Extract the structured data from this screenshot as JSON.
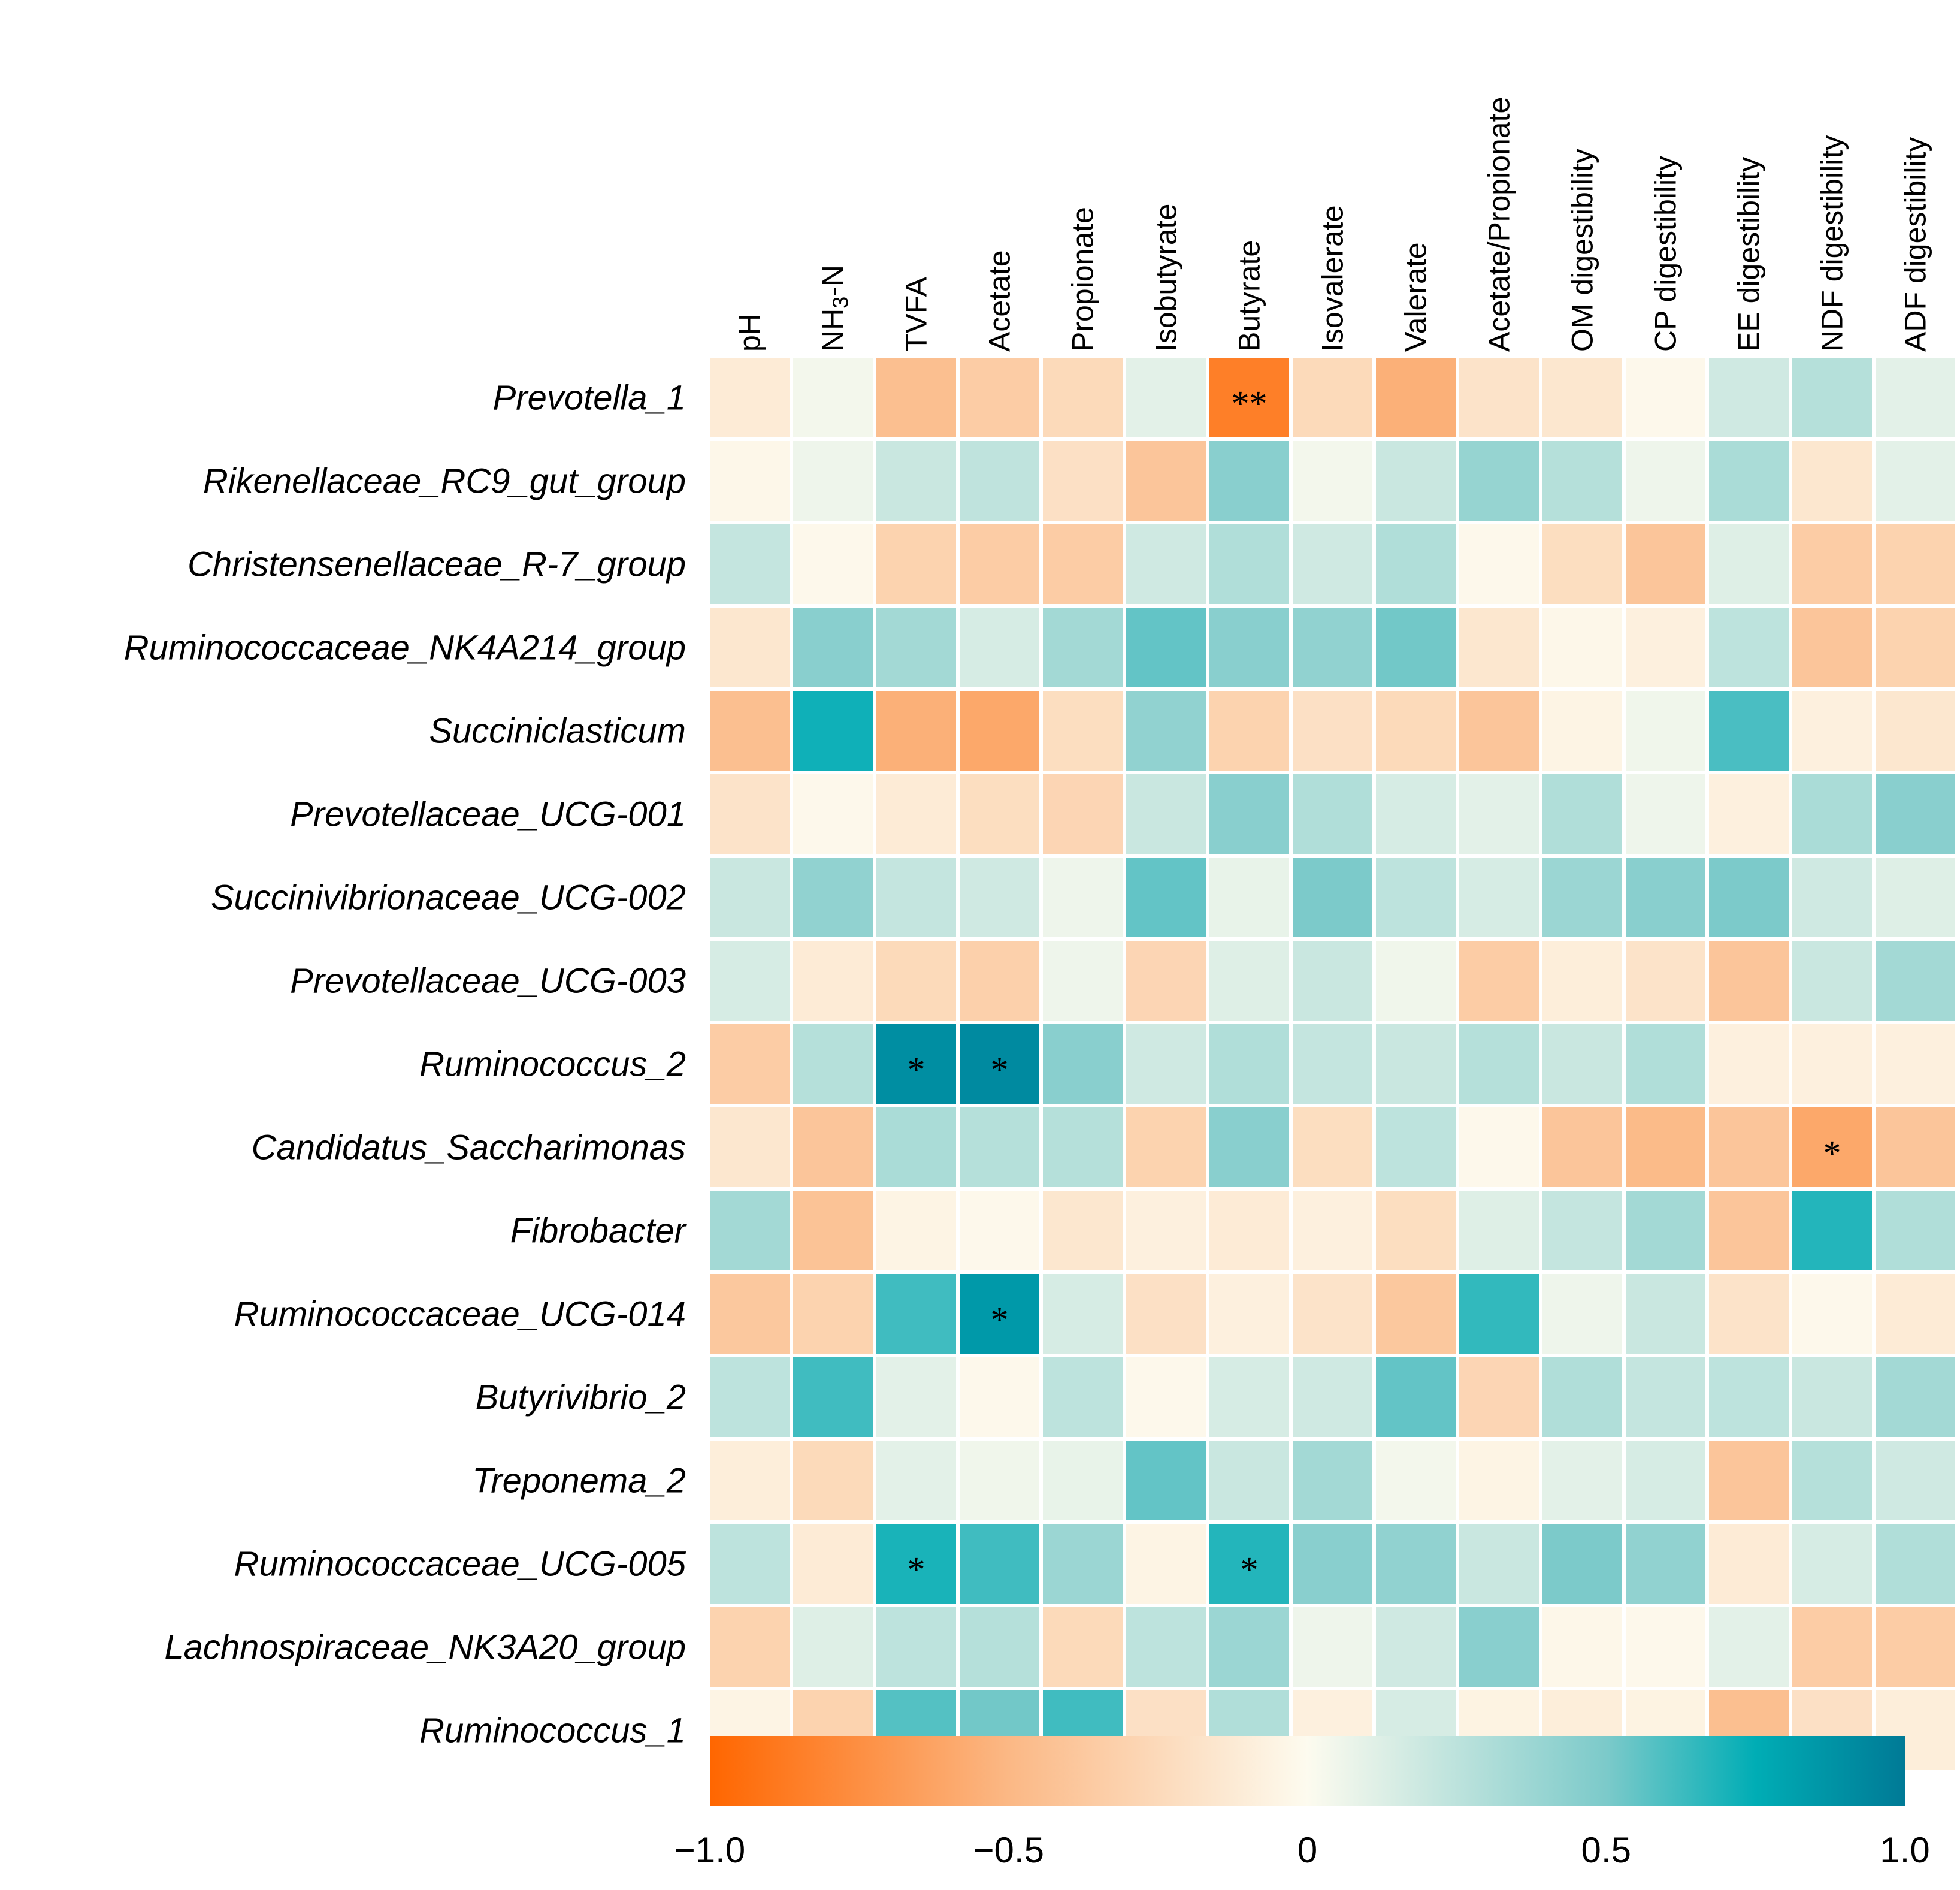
{
  "chart_data": {
    "type": "heatmap",
    "columns": [
      "pH",
      "NH3-N",
      "TVFA",
      "Acetate",
      "Propionate",
      "Isobutyrate",
      "Butyrate",
      "Isovalerate",
      "Valerate",
      "Acetate/Propionate",
      "OM digestibility",
      "CP digestibility",
      "EE digestibility",
      "NDF digestibility",
      "ADF digestibility"
    ],
    "rows": [
      "Prevotella_1",
      "Rikenellaceae_RC9_gut_group",
      "Christensenellaceae_R-7_group",
      "Ruminococcaceae_NK4A214_group",
      "Succiniclasticum",
      "Prevotellaceae_UCG-001",
      "Succinivibrionaceae_UCG-002",
      "Prevotellaceae_UCG-003",
      "Ruminococcus_2",
      "Candidatus_Saccharimonas",
      "Fibrobacter",
      "Ruminococcaceae_UCG-014",
      "Butyrivibrio_2",
      "Treponema_2",
      "Ruminococcaceae_UCG-005",
      "Lachnospiraceae_NK3A20_group",
      "Ruminococcus_1"
    ],
    "values": [
      [
        -0.12,
        0.04,
        -0.45,
        -0.35,
        -0.25,
        0.1,
        -0.85,
        -0.25,
        -0.55,
        -0.18,
        -0.15,
        -0.02,
        0.18,
        0.28,
        0.1
      ],
      [
        -0.03,
        0.06,
        0.2,
        0.24,
        -0.2,
        -0.4,
        0.45,
        0.04,
        0.2,
        0.4,
        0.28,
        0.06,
        0.32,
        -0.15,
        0.1
      ],
      [
        0.22,
        -0.02,
        -0.3,
        -0.35,
        -0.35,
        0.18,
        0.3,
        0.18,
        0.3,
        -0.02,
        -0.22,
        -0.4,
        0.12,
        -0.35,
        -0.3
      ],
      [
        -0.15,
        0.45,
        0.35,
        0.15,
        0.35,
        0.55,
        0.45,
        0.42,
        0.52,
        -0.15,
        -0.03,
        -0.08,
        0.25,
        -0.4,
        -0.3
      ],
      [
        -0.45,
        0.72,
        -0.55,
        -0.6,
        -0.22,
        0.42,
        -0.3,
        -0.2,
        -0.25,
        -0.4,
        -0.05,
        0.05,
        0.6,
        -0.08,
        -0.15
      ],
      [
        -0.18,
        -0.02,
        -0.12,
        -0.22,
        -0.28,
        0.2,
        0.45,
        0.3,
        0.15,
        0.1,
        0.3,
        0.06,
        -0.08,
        0.32,
        0.45
      ],
      [
        0.2,
        0.42,
        0.22,
        0.18,
        0.06,
        0.55,
        0.08,
        0.5,
        0.25,
        0.15,
        0.38,
        0.45,
        0.5,
        0.18,
        0.12
      ],
      [
        0.15,
        -0.12,
        -0.25,
        -0.32,
        0.06,
        -0.28,
        0.12,
        0.2,
        0.05,
        -0.35,
        -0.1,
        -0.18,
        -0.4,
        0.2,
        0.35
      ],
      [
        -0.35,
        0.28,
        0.9,
        0.92,
        0.45,
        0.18,
        0.3,
        0.22,
        0.2,
        0.28,
        0.2,
        0.3,
        -0.08,
        -0.08,
        -0.08
      ],
      [
        -0.15,
        -0.4,
        0.32,
        0.28,
        0.28,
        -0.3,
        0.45,
        -0.22,
        0.25,
        -0.02,
        -0.4,
        -0.48,
        -0.4,
        -0.6,
        -0.4
      ],
      [
        0.35,
        -0.42,
        -0.05,
        -0.02,
        -0.15,
        -0.08,
        -0.12,
        -0.08,
        -0.22,
        0.12,
        0.22,
        0.35,
        -0.4,
        0.68,
        0.3
      ],
      [
        -0.38,
        -0.3,
        0.62,
        0.85,
        0.15,
        -0.2,
        -0.08,
        -0.18,
        -0.38,
        0.65,
        0.06,
        0.2,
        -0.18,
        -0.02,
        -0.12
      ],
      [
        0.25,
        0.62,
        0.1,
        -0.02,
        0.25,
        -0.02,
        0.15,
        0.18,
        0.55,
        -0.28,
        0.3,
        0.22,
        0.25,
        0.2,
        0.35
      ],
      [
        -0.1,
        -0.25,
        0.1,
        0.05,
        0.08,
        0.55,
        0.2,
        0.35,
        0.04,
        -0.05,
        0.1,
        0.15,
        -0.4,
        0.28,
        0.18
      ],
      [
        0.25,
        -0.12,
        0.7,
        0.62,
        0.38,
        -0.05,
        0.68,
        0.45,
        0.42,
        0.2,
        0.5,
        0.42,
        -0.12,
        0.15,
        0.3
      ],
      [
        -0.3,
        0.12,
        0.25,
        0.28,
        -0.25,
        0.25,
        0.38,
        0.06,
        0.18,
        0.45,
        -0.03,
        -0.02,
        0.1,
        -0.35,
        -0.35
      ],
      [
        -0.05,
        -0.3,
        0.58,
        0.52,
        0.62,
        -0.2,
        0.3,
        -0.08,
        0.15,
        -0.06,
        -0.1,
        -0.06,
        -0.45,
        -0.2,
        -0.1
      ]
    ],
    "significance": [
      [
        "",
        "",
        "",
        "",
        "",
        "",
        "**",
        "",
        "",
        "",
        "",
        "",
        "",
        "",
        ""
      ],
      [
        "",
        "",
        "",
        "",
        "",
        "",
        "",
        "",
        "",
        "",
        "",
        "",
        "",
        "",
        ""
      ],
      [
        "",
        "",
        "",
        "",
        "",
        "",
        "",
        "",
        "",
        "",
        "",
        "",
        "",
        "",
        ""
      ],
      [
        "",
        "",
        "",
        "",
        "",
        "",
        "",
        "",
        "",
        "",
        "",
        "",
        "",
        "",
        ""
      ],
      [
        "",
        "",
        "",
        "",
        "",
        "",
        "",
        "",
        "",
        "",
        "",
        "",
        "",
        "",
        ""
      ],
      [
        "",
        "",
        "",
        "",
        "",
        "",
        "",
        "",
        "",
        "",
        "",
        "",
        "",
        "",
        ""
      ],
      [
        "",
        "",
        "",
        "",
        "",
        "",
        "",
        "",
        "",
        "",
        "",
        "",
        "",
        "",
        ""
      ],
      [
        "",
        "",
        "",
        "",
        "",
        "",
        "",
        "",
        "",
        "",
        "",
        "",
        "",
        "",
        ""
      ],
      [
        "",
        "",
        "*",
        "*",
        "",
        "",
        "",
        "",
        "",
        "",
        "",
        "",
        "",
        "",
        ""
      ],
      [
        "",
        "",
        "",
        "",
        "",
        "",
        "",
        "",
        "",
        "",
        "",
        "",
        "",
        "*",
        ""
      ],
      [
        "",
        "",
        "",
        "",
        "",
        "",
        "",
        "",
        "",
        "",
        "",
        "",
        "",
        "",
        ""
      ],
      [
        "",
        "",
        "",
        "*",
        "",
        "",
        "",
        "",
        "",
        "",
        "",
        "",
        "",
        "",
        ""
      ],
      [
        "",
        "",
        "",
        "",
        "",
        "",
        "",
        "",
        "",
        "",
        "",
        "",
        "",
        "",
        ""
      ],
      [
        "",
        "",
        "",
        "",
        "",
        "",
        "",
        "",
        "",
        "",
        "",
        "",
        "",
        "",
        ""
      ],
      [
        "",
        "",
        "*",
        "",
        "",
        "",
        "*",
        "",
        "",
        "",
        "",
        "",
        "",
        "",
        ""
      ],
      [
        "",
        "",
        "",
        "",
        "",
        "",
        "",
        "",
        "",
        "",
        "",
        "",
        "",
        "",
        ""
      ],
      [
        "",
        "",
        "",
        "",
        "",
        "",
        "",
        "",
        "",
        "",
        "",
        "",
        "",
        "",
        ""
      ]
    ],
    "colorbar": {
      "range": [
        -1.0,
        1.0
      ],
      "ticks": [
        -1.0,
        -0.5,
        0,
        0.5,
        1.0
      ],
      "tick_labels": [
        "−1.0",
        "−0.5",
        "0",
        "0.5",
        "1.0"
      ],
      "stops": [
        {
          "value": -1.0,
          "color": "#ff6600"
        },
        {
          "value": -0.5,
          "color": "#fbb885"
        },
        {
          "value": 0.0,
          "color": "#fdfbef"
        },
        {
          "value": 0.5,
          "color": "#7ccaca"
        },
        {
          "value": 0.75,
          "color": "#00adb5"
        },
        {
          "value": 1.0,
          "color": "#007a96"
        }
      ]
    }
  }
}
